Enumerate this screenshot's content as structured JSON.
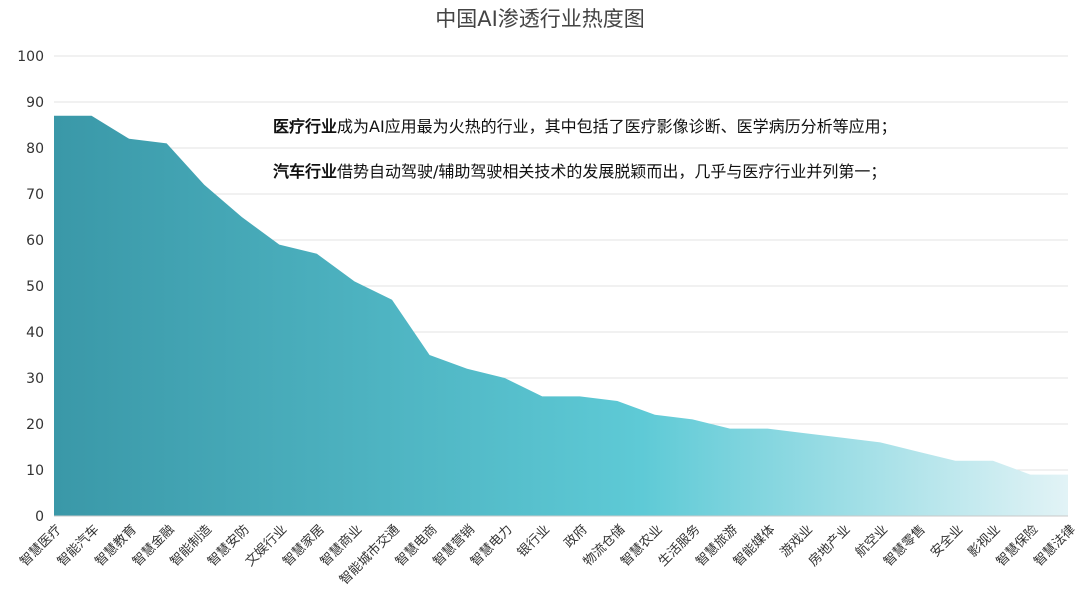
{
  "chart_data": {
    "type": "area",
    "title": "中国AI渗透行业热度图",
    "xlabel": "",
    "ylabel": "",
    "ylim": [
      0,
      100
    ],
    "yticks": [
      0,
      10,
      20,
      30,
      40,
      50,
      60,
      70,
      80,
      90,
      100
    ],
    "grid": true,
    "categories": [
      "智慧医疗",
      "智能汽车",
      "智慧教育",
      "智慧金融",
      "智能制造",
      "智慧安防",
      "文娱行业",
      "智慧家居",
      "智慧商业",
      "智能城市交通",
      "智慧电商",
      "智慧营销",
      "智慧电力",
      "银行业",
      "政府",
      "物流仓储",
      "智慧农业",
      "生活服务",
      "智慧旅游",
      "智能媒体",
      "游戏业",
      "房地产业",
      "航空业",
      "智慧零售",
      "安全业",
      "影视业",
      "智慧保险",
      "智慧法律"
    ],
    "values": [
      87,
      87,
      82,
      81,
      72,
      65,
      59,
      57,
      51,
      47,
      35,
      32,
      30,
      26,
      26,
      25,
      22,
      21,
      19,
      19,
      18,
      17,
      16,
      14,
      12,
      12,
      9,
      9
    ],
    "colors": {
      "fill_start": "#3a98a8",
      "fill_mid": "#5ecad6",
      "fill_end": "#e2f3f6"
    }
  },
  "annotations": [
    {
      "bold": "医疗行业",
      "text": "成为AI应用最为火热的行业，其中包括了医疗影像诊断、医学病历分析等应用；"
    },
    {
      "bold": "汽车行业",
      "text": "借势自动驾驶/辅助驾驶相关技术的发展脱颖而出，几乎与医疗行业并列第一；"
    }
  ]
}
